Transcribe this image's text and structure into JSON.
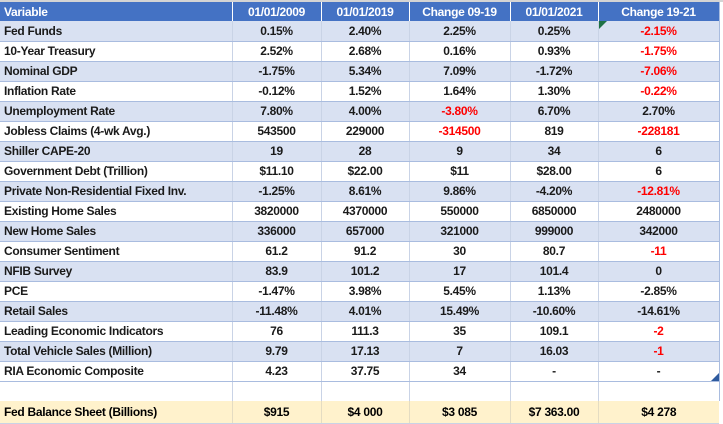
{
  "colors": {
    "header_bg": "#4472C4",
    "header_fg": "#FFFFFF",
    "band": "#D9E1F2",
    "footer_bg": "#FFF2CC",
    "neg": "#FF0000",
    "row_border": "#A9BCDF",
    "grid": "#C9D3E6",
    "green": "#1E7145",
    "handle": "#2E5A9E",
    "top_line": "#D4D4D4"
  },
  "table": {
    "header": {
      "variable": "Variable",
      "columns": [
        "01/01/2009",
        "01/01/2019",
        "Change 09-19",
        "01/01/2021",
        "Change 19-21"
      ]
    },
    "rows": [
      {
        "label": "Fed Funds",
        "values": [
          "0.15%",
          "2.40%",
          "2.25%",
          "0.25%",
          "-2.15%"
        ],
        "red_cols": [
          4
        ],
        "marker": {
          "icon": "error-indicator-icon",
          "col": 4,
          "corner": "top-left"
        }
      },
      {
        "label": "10-Year Treasury",
        "values": [
          "2.52%",
          "2.68%",
          "0.16%",
          "0.93%",
          "-1.75%"
        ],
        "red_cols": [
          4
        ]
      },
      {
        "label": "Nominal GDP",
        "values": [
          "-1.75%",
          "5.34%",
          "7.09%",
          "-1.72%",
          "-7.06%"
        ],
        "red_cols": [
          4
        ]
      },
      {
        "label": "Inflation Rate",
        "values": [
          "-0.12%",
          "1.52%",
          "1.64%",
          "1.30%",
          "-0.22%"
        ],
        "red_cols": [
          4
        ]
      },
      {
        "label": "Unemployment Rate",
        "values": [
          "7.80%",
          "4.00%",
          "-3.80%",
          "6.70%",
          "2.70%"
        ],
        "red_cols": [
          2
        ]
      },
      {
        "label": "Jobless Claims (4-wk Avg.)",
        "values": [
          "543500",
          "229000",
          "-314500",
          "819",
          "-228181"
        ],
        "red_cols": [
          2,
          4
        ]
      },
      {
        "label": "Shiller CAPE-20",
        "values": [
          "19",
          "28",
          "9",
          "34",
          "6"
        ],
        "red_cols": []
      },
      {
        "label": "Government Debt (Trillion)",
        "values": [
          "$11.10",
          "$22.00",
          "$11",
          "$28.00",
          "6"
        ],
        "red_cols": []
      },
      {
        "label": "Private Non-Residential Fixed Inv.",
        "values": [
          "-1.25%",
          "8.61%",
          "9.86%",
          "-4.20%",
          "-12.81%"
        ],
        "red_cols": [
          4
        ]
      },
      {
        "label": "Existing Home Sales",
        "values": [
          "3820000",
          "4370000",
          "550000",
          "6850000",
          "2480000"
        ],
        "red_cols": []
      },
      {
        "label": "New Home Sales",
        "values": [
          "336000",
          "657000",
          "321000",
          "999000",
          "342000"
        ],
        "red_cols": []
      },
      {
        "label": "Consumer Sentiment",
        "values": [
          "61.2",
          "91.2",
          "30",
          "80.7",
          "-11"
        ],
        "red_cols": [
          4
        ]
      },
      {
        "label": "NFIB Survey",
        "values": [
          "83.9",
          "101.2",
          "17",
          "101.4",
          "0"
        ],
        "red_cols": []
      },
      {
        "label": "PCE",
        "values": [
          "-1.47%",
          "3.98%",
          "5.45%",
          "1.13%",
          "-2.85%"
        ],
        "red_cols": []
      },
      {
        "label": "Retail Sales",
        "values": [
          "-11.48%",
          "4.01%",
          "15.49%",
          "-10.60%",
          "-14.61%"
        ],
        "red_cols": []
      },
      {
        "label": "Leading Economic Indicators",
        "values": [
          "76",
          "111.3",
          "35",
          "109.1",
          "-2"
        ],
        "red_cols": [
          4
        ]
      },
      {
        "label": "Total Vehicle Sales (Million)",
        "values": [
          "9.79",
          "17.13",
          "7",
          "16.03",
          "-1"
        ],
        "red_cols": [
          4
        ]
      },
      {
        "label": "RIA Economic Composite",
        "values": [
          "4.23",
          "37.75",
          "34",
          "-",
          "-"
        ],
        "red_cols": [],
        "marker": {
          "icon": "fill-handle-icon",
          "col": 4,
          "corner": "bottom-right"
        }
      }
    ],
    "footer": {
      "label": "Fed Balance Sheet (Billions)",
      "values": [
        "$915",
        "$4 000",
        "$3 085",
        "$7 363.00",
        "$4 278"
      ]
    }
  },
  "icons": {
    "error-indicator-icon": {
      "shape": "corner-triangle-top-left",
      "color": "#1E7145"
    },
    "fill-handle-icon": {
      "shape": "corner-triangle-bottom-right",
      "color": "#2E5A9E"
    }
  }
}
